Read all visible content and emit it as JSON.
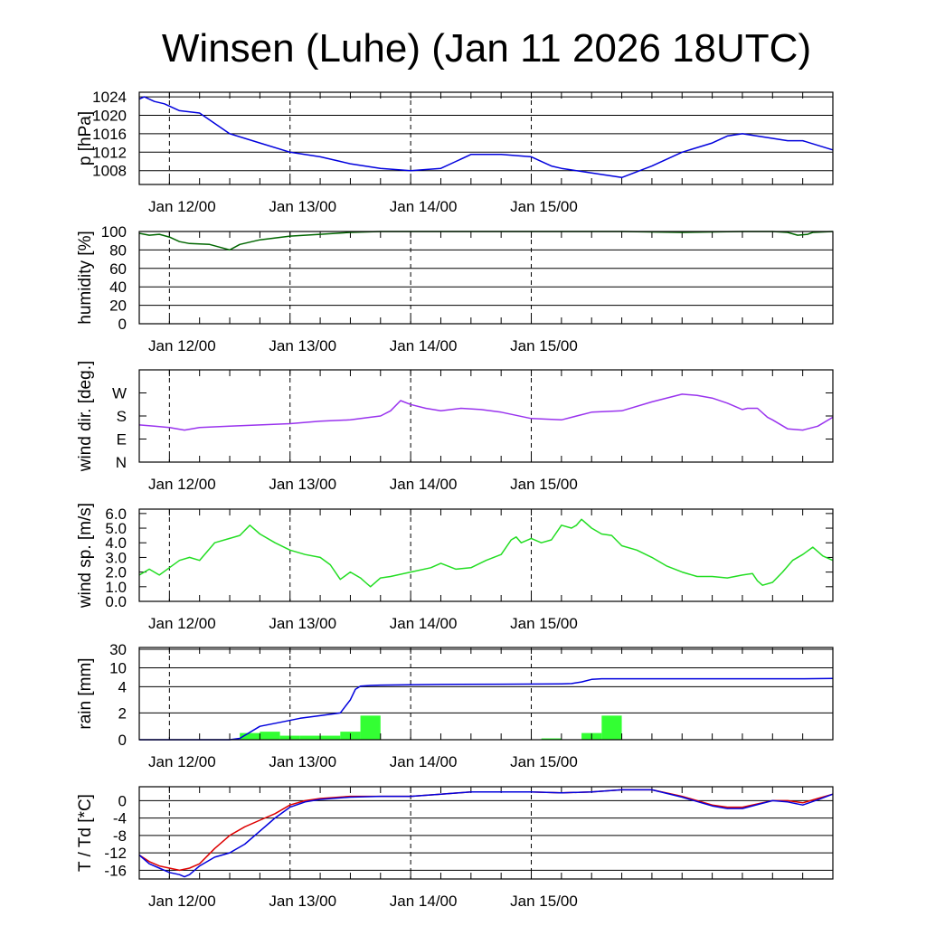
{
  "title": "Winsen (Luhe) (Jan 11 2026 18UTC)",
  "x_tick_labels": [
    "Jan 12/00",
    "Jan 13/00",
    "Jan 14/00",
    "Jan 15/00"
  ],
  "chart_data": [
    {
      "type": "line",
      "ylabel": "p [hPa]",
      "ylim": [
        1005,
        1025
      ],
      "yticks": [
        1008,
        1012,
        1016,
        1020,
        1024
      ],
      "yticklabels": [
        "1008",
        "1012",
        "1016",
        "1020",
        "1024"
      ],
      "grid": true,
      "x_unit": "hours from Jan 11 18UTC",
      "series": [
        {
          "name": "",
          "color": "#0000dd",
          "x": [
            0,
            1,
            3,
            5,
            8,
            12,
            18,
            24,
            30,
            36,
            40,
            42,
            48,
            54,
            60,
            63,
            66,
            72,
            78,
            81,
            82,
            84,
            90,
            96,
            102,
            108,
            114,
            117,
            120,
            126,
            129,
            132,
            138
          ],
          "y": [
            1023.5,
            1024,
            1023,
            1022.5,
            1021,
            1020.5,
            1016,
            1014,
            1012,
            1011,
            1010,
            1009.5,
            1008.5,
            1008,
            1008.5,
            1010,
            1011.5,
            1011.5,
            1011,
            1009.5,
            1009,
            1008.5,
            1007.5,
            1006.5,
            1009,
            1012,
            1014,
            1015.5,
            1016,
            1015,
            1014.5,
            1014.5,
            1012.5
          ]
        }
      ]
    },
    {
      "type": "line",
      "ylabel": "humidity [%]",
      "ylim": [
        0,
        100
      ],
      "yticks": [
        0,
        20,
        40,
        60,
        80,
        100
      ],
      "yticklabels": [
        "0",
        "20",
        "40",
        "60",
        "80",
        "100"
      ],
      "grid": true,
      "series": [
        {
          "name": "",
          "color": "#006600",
          "x": [
            0,
            2,
            4,
            6,
            8,
            10,
            14,
            16,
            18,
            20,
            24,
            30,
            36,
            42,
            48,
            60,
            72,
            84,
            96,
            102,
            108,
            114,
            120,
            126,
            129,
            131,
            133,
            134,
            138
          ],
          "y": [
            98,
            96,
            97,
            94,
            89,
            87,
            86,
            83,
            80,
            86,
            91,
            95,
            97,
            99,
            100,
            100,
            100,
            100,
            100,
            99.5,
            99,
            99.5,
            100,
            100,
            99,
            96,
            97,
            99,
            100
          ]
        }
      ]
    },
    {
      "type": "line",
      "ylabel": "wind dir. [deg.]",
      "ylim": [
        0,
        360
      ],
      "yticks": [
        0,
        90,
        180,
        270
      ],
      "yticklabels": [
        "N",
        "E",
        "S",
        "W"
      ],
      "grid": false,
      "series": [
        {
          "name": "",
          "color": "#9933ee",
          "x": [
            0,
            3,
            6,
            9,
            12,
            18,
            24,
            30,
            36,
            42,
            46,
            48,
            50,
            52,
            54,
            57,
            60,
            64,
            68,
            72,
            78,
            84,
            90,
            96,
            102,
            108,
            111,
            114,
            117,
            120,
            121,
            123,
            125,
            126,
            129,
            132,
            135,
            138
          ],
          "y": [
            145,
            140,
            135,
            125,
            135,
            140,
            145,
            150,
            160,
            165,
            175,
            180,
            200,
            240,
            225,
            210,
            200,
            210,
            205,
            195,
            170,
            165,
            195,
            200,
            235,
            265,
            260,
            250,
            230,
            205,
            210,
            210,
            175,
            165,
            130,
            125,
            140,
            175
          ]
        }
      ]
    },
    {
      "type": "line",
      "ylabel": "wind sp. [m/s]",
      "ylim": [
        0,
        6.3
      ],
      "yticks": [
        0,
        1,
        2,
        3,
        4,
        5,
        6
      ],
      "yticklabels": [
        "0.0",
        "1.0",
        "2.0",
        "3.0",
        "4.0",
        "5.0",
        "6.0"
      ],
      "grid": false,
      "series": [
        {
          "name": "",
          "color": "#22dd22",
          "x": [
            0,
            2,
            4,
            6,
            8,
            10,
            12,
            15,
            18,
            20,
            22,
            24,
            27,
            30,
            33,
            36,
            38,
            40,
            42,
            44,
            45,
            46,
            48,
            50,
            54,
            58,
            60,
            63,
            66,
            69,
            72,
            74,
            75,
            76,
            78,
            80,
            82,
            84,
            86,
            87,
            88,
            90,
            92,
            94,
            96,
            99,
            102,
            105,
            108,
            111,
            114,
            117,
            120,
            122,
            123,
            124,
            126,
            128,
            130,
            132,
            134,
            136,
            138
          ],
          "y": [
            1.8,
            2.2,
            1.8,
            2.3,
            2.8,
            3.0,
            2.8,
            4.0,
            4.3,
            4.5,
            5.2,
            4.6,
            4.0,
            3.5,
            3.2,
            3.0,
            2.5,
            1.5,
            2.0,
            1.6,
            1.3,
            1.0,
            1.6,
            1.7,
            2.0,
            2.3,
            2.6,
            2.2,
            2.3,
            2.8,
            3.2,
            4.2,
            4.4,
            4.0,
            4.3,
            4.0,
            4.2,
            5.2,
            5.0,
            5.2,
            5.6,
            5.0,
            4.6,
            4.5,
            3.8,
            3.5,
            3.0,
            2.4,
            2.0,
            1.7,
            1.7,
            1.6,
            1.8,
            1.9,
            1.4,
            1.1,
            1.3,
            2.0,
            2.8,
            3.2,
            3.7,
            3.1,
            2.8
          ]
        }
      ]
    },
    {
      "type": "bar",
      "ylabel": "rain [mm]",
      "ylim": [
        0,
        40
      ],
      "yticks": [
        0,
        2,
        4,
        10,
        30
      ],
      "yticklabels": [
        "0",
        "2",
        "4",
        "10",
        "30"
      ],
      "yscale": "nonlinear",
      "grid": true,
      "bars": {
        "name": "",
        "color": "#33ff33",
        "x_start": [
          20,
          24,
          28,
          32,
          36,
          40,
          44,
          48,
          52,
          56,
          60,
          64,
          68,
          72,
          76,
          80,
          84,
          88,
          92,
          96,
          100,
          104,
          108,
          112,
          116,
          120,
          124,
          128,
          132
        ],
        "values": [
          0.5,
          0.6,
          0.3,
          0.3,
          0.3,
          0.6,
          1.8,
          0,
          0,
          0,
          0,
          0,
          0,
          0,
          0,
          0.1,
          0,
          0.5,
          1.8,
          0,
          0,
          0,
          0,
          0,
          0,
          0,
          0,
          0,
          0
        ]
      },
      "series": [
        {
          "name": "",
          "color": "#0000dd",
          "x": [
            0,
            18,
            20,
            24,
            28,
            32,
            36,
            40,
            42,
            43,
            44,
            46,
            48,
            60,
            72,
            84,
            86,
            88,
            90,
            92,
            96,
            108,
            120,
            132,
            138
          ],
          "y": [
            0,
            0,
            0.1,
            1.0,
            1.3,
            1.6,
            1.8,
            2.0,
            3.0,
            3.8,
            4.2,
            4.4,
            4.5,
            4.7,
            4.8,
            4.9,
            5.0,
            5.5,
            6.3,
            6.5,
            6.5,
            6.5,
            6.5,
            6.5,
            6.6
          ]
        }
      ]
    },
    {
      "type": "line",
      "ylabel": "T / Td [*C]",
      "ylim": [
        -18,
        3.2
      ],
      "yticks": [
        -16,
        -12,
        -8,
        -4,
        0
      ],
      "yticklabels": [
        "-16",
        "-12",
        "-8",
        "-4",
        "0"
      ],
      "grid": true,
      "series": [
        {
          "name": "",
          "color": "#dd0000",
          "x": [
            0,
            2,
            4,
            6,
            8,
            10,
            12,
            15,
            18,
            21,
            24,
            27,
            30,
            33,
            36,
            42,
            48,
            54,
            60,
            66,
            72,
            78,
            84,
            90,
            96,
            102,
            108,
            114,
            117,
            120,
            126,
            129,
            132,
            135,
            138
          ],
          "y": [
            -12.5,
            -14,
            -15,
            -15.5,
            -16,
            -15.5,
            -14.5,
            -11,
            -8,
            -6,
            -4.5,
            -3,
            -1,
            0,
            0.5,
            1,
            1,
            1,
            1.5,
            2,
            2,
            2,
            1.8,
            2,
            2.5,
            2.5,
            1,
            -1,
            -1.5,
            -1.5,
            0,
            0,
            -0.5,
            0.5,
            1.5
          ]
        },
        {
          "name": "",
          "color": "#0000dd",
          "x": [
            0,
            2,
            4,
            6,
            8,
            9,
            10,
            12,
            15,
            18,
            21,
            24,
            26,
            27,
            30,
            33,
            36,
            42,
            48,
            54,
            60,
            66,
            72,
            78,
            84,
            90,
            96,
            102,
            108,
            114,
            117,
            120,
            126,
            129,
            132,
            135,
            138
          ],
          "y": [
            -12.5,
            -14.5,
            -15.5,
            -16.5,
            -17,
            -17.5,
            -17,
            -15,
            -13,
            -12,
            -10,
            -7,
            -5,
            -4,
            -1.5,
            -0.3,
            0.3,
            0.8,
            1,
            1,
            1.5,
            2,
            2,
            2,
            1.8,
            2,
            2.5,
            2.5,
            0.8,
            -1.2,
            -1.8,
            -1.8,
            0,
            -0.3,
            -1,
            0.2,
            1.5
          ]
        }
      ]
    }
  ]
}
